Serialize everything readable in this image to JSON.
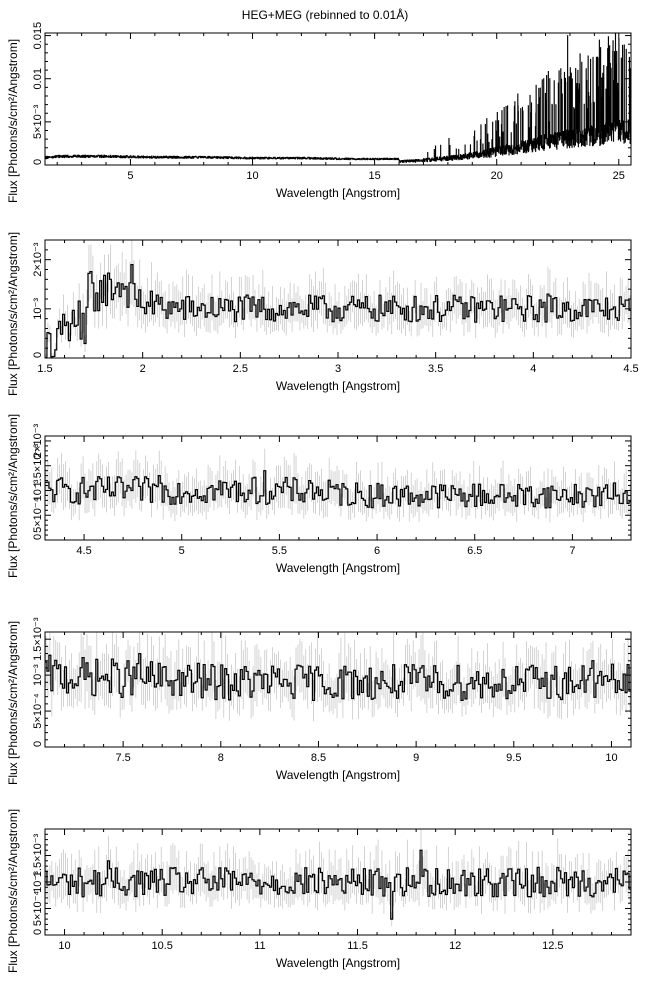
{
  "title": "HEG+MEG (rebinned to 0.01Å)",
  "colors": {
    "data": "#000000",
    "errors": "#c8c8c8",
    "frame": "#000000",
    "background": "#ffffff"
  },
  "chart_data": [
    {
      "type": "line",
      "step": true,
      "xlabel": "Wavelength [Angstrom]",
      "ylabel": "Flux [Photons/s/cm²/Angstrom]",
      "xlim": [
        1.5,
        25.5
      ],
      "ylim": [
        0,
        0.0153
      ],
      "xticks": [
        5,
        10,
        15,
        20,
        25
      ],
      "xtick_labels": [
        "5",
        "10",
        "15",
        "20",
        "25"
      ],
      "yticks": [
        0,
        0.005,
        0.01,
        0.015
      ],
      "ytick_labels": [
        "0",
        "5×10⁻³",
        "0.01",
        "0.015"
      ],
      "profile": [
        [
          1.5,
          0.0008
        ],
        [
          2.0,
          0.001
        ],
        [
          4.0,
          0.001
        ],
        [
          6.0,
          0.0009
        ],
        [
          8.0,
          0.0009
        ],
        [
          10.0,
          0.0008
        ],
        [
          12.0,
          0.0008
        ],
        [
          14.0,
          0.0007
        ],
        [
          15.0,
          0.0007
        ],
        [
          16.0,
          0.0007
        ],
        [
          17.0,
          0.001
        ],
        [
          18.0,
          0.0014
        ],
        [
          19.0,
          0.002
        ],
        [
          20.0,
          0.0028
        ],
        [
          21.0,
          0.0038
        ],
        [
          22.0,
          0.0048
        ],
        [
          23.0,
          0.0055
        ],
        [
          24.0,
          0.0062
        ],
        [
          25.0,
          0.007
        ],
        [
          25.5,
          0.007
        ]
      ],
      "highlights": [
        {
          "x": 22.9,
          "y": 0.015
        },
        {
          "x": 25.1,
          "y": 0.0124
        },
        {
          "x": 24.8,
          "y": 0.0098
        },
        {
          "x": 22.0,
          "y": 0.0075
        },
        {
          "x": 21.6,
          "y": 0.006
        },
        {
          "x": 23.4,
          "y": 0.0072
        },
        {
          "x": 24.1,
          "y": 0.008
        },
        {
          "x": 20.7,
          "y": 0.005
        }
      ]
    },
    {
      "type": "line",
      "step": true,
      "xlabel": "Wavelength [Angstrom]",
      "ylabel": "Flux [Photons/s/cm²/Angstrom]",
      "xlim": [
        1.5,
        4.5
      ],
      "ylim": [
        0,
        0.0024
      ],
      "xticks": [
        1.5,
        2,
        2.5,
        3,
        3.5,
        4,
        4.5
      ],
      "xtick_labels": [
        "1.5",
        "2",
        "2.5",
        "3",
        "3.5",
        "4",
        "4.5"
      ],
      "yticks": [
        0,
        0.001,
        0.002
      ],
      "ytick_labels": [
        "0",
        "10⁻³",
        "2×10⁻³"
      ],
      "profile": [
        [
          1.5,
          0.0003
        ],
        [
          1.6,
          0.0006
        ],
        [
          1.7,
          0.001
        ],
        [
          1.8,
          0.0014
        ],
        [
          1.9,
          0.0015
        ],
        [
          2.0,
          0.0011
        ],
        [
          2.2,
          0.001
        ],
        [
          2.5,
          0.001
        ],
        [
          3.0,
          0.001
        ],
        [
          3.5,
          0.001
        ],
        [
          4.0,
          0.001
        ],
        [
          4.5,
          0.001
        ]
      ],
      "highlights": [
        {
          "x": 1.95,
          "y": 0.0019
        },
        {
          "x": 1.83,
          "y": 0.0016
        },
        {
          "x": 4.07,
          "y": 0.0013
        }
      ]
    },
    {
      "type": "line",
      "step": true,
      "xlabel": "Wavelength [Angstrom]",
      "ylabel": "Flux [Photons/s/cm²/Angstrom]",
      "xlim": [
        4.3,
        7.3
      ],
      "ylim": [
        0,
        0.0021
      ],
      "xticks": [
        4.5,
        5,
        5.5,
        6,
        6.5,
        7
      ],
      "xtick_labels": [
        "4.5",
        "5",
        "5.5",
        "6",
        "6.5",
        "7"
      ],
      "yticks": [
        0,
        0.0005,
        0.001,
        0.0015,
        0.002
      ],
      "ytick_labels": [
        "0",
        "5×10⁻⁴",
        "10⁻³",
        "1.5×10⁻³",
        "2×10⁻³"
      ],
      "profile": [
        [
          4.3,
          0.001
        ],
        [
          5.0,
          0.001
        ],
        [
          5.5,
          0.001
        ],
        [
          6.0,
          0.0009
        ],
        [
          6.5,
          0.0009
        ],
        [
          7.3,
          0.0009
        ]
      ],
      "highlights": [
        {
          "x": 5.42,
          "y": 0.0014
        },
        {
          "x": 4.88,
          "y": 0.0013
        },
        {
          "x": 5.65,
          "y": 0.0012
        }
      ]
    },
    {
      "type": "line",
      "step": true,
      "xlabel": "Wavelength [Angstrom]",
      "ylabel": "Flux [Photons/s/cm²/Angstrom]",
      "xlim": [
        7.1,
        10.1
      ],
      "ylim": [
        0,
        0.0016
      ],
      "xticks": [
        7.5,
        8,
        8.5,
        9,
        9.5,
        10
      ],
      "xtick_labels": [
        "7.5",
        "8",
        "8.5",
        "9",
        "9.5",
        "10"
      ],
      "yticks": [
        0,
        0.0005,
        0.001,
        0.0015
      ],
      "ytick_labels": [
        "0",
        "5×10⁻⁴",
        "10⁻³",
        "1.5×10⁻³"
      ],
      "profile": [
        [
          7.1,
          0.001
        ],
        [
          8.0,
          0.0009
        ],
        [
          9.0,
          0.0009
        ],
        [
          10.1,
          0.0009
        ]
      ],
      "highlights": [
        {
          "x": 7.58,
          "y": 0.0013
        },
        {
          "x": 9.9,
          "y": 0.0012
        }
      ]
    },
    {
      "type": "line",
      "step": true,
      "xlabel": "Wavelength [Angstrom]",
      "ylabel": "Flux [Photons/s/cm²/Angstrom]",
      "xlim": [
        9.9,
        12.9
      ],
      "ylim": [
        0,
        0.002
      ],
      "xticks": [
        10,
        10.5,
        11,
        11.5,
        12,
        12.5
      ],
      "xtick_labels": [
        "10",
        "10.5",
        "11",
        "11.5",
        "12",
        "12.5"
      ],
      "yticks": [
        0,
        0.0005,
        0.001,
        0.0015
      ],
      "ytick_labels": [
        "0",
        "5×10⁻⁴",
        "10⁻³",
        "1.5×10⁻³"
      ],
      "profile": [
        [
          9.9,
          0.001
        ],
        [
          11.0,
          0.001
        ],
        [
          12.0,
          0.001
        ],
        [
          12.9,
          0.001
        ]
      ],
      "highlights": [
        {
          "x": 11.82,
          "y": 0.0016
        },
        {
          "x": 10.22,
          "y": 0.0014
        },
        {
          "x": 11.68,
          "y": 0.0003
        }
      ]
    }
  ]
}
